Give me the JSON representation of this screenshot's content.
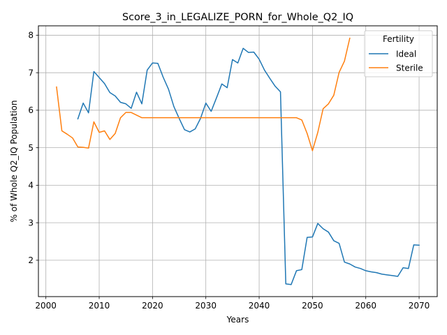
{
  "chart_data": {
    "type": "line",
    "title": "Score_3_in_LEGALIZE_PORN_for_Whole_Q2_IQ",
    "xlabel": "Years",
    "ylabel": "% of Whole Q2_IQ Population",
    "xlim": [
      1998.6,
      2073.4
    ],
    "ylim": [
      1.03,
      8.25
    ],
    "xticks": [
      2000,
      2010,
      2020,
      2030,
      2040,
      2050,
      2060,
      2070
    ],
    "yticks": [
      2,
      3,
      4,
      5,
      6,
      7,
      8
    ],
    "grid": true,
    "legend": {
      "title": "Fertility",
      "placement": "top-right"
    },
    "series": [
      {
        "name": "Ideal",
        "color": "#1f77b4",
        "x": [
          2006,
          2007,
          2008,
          2009,
          2010,
          2011,
          2012,
          2013,
          2014,
          2015,
          2016,
          2017,
          2018,
          2019,
          2020,
          2021,
          2022,
          2023,
          2024,
          2025,
          2026,
          2027,
          2028,
          2029,
          2030,
          2031,
          2032,
          2033,
          2034,
          2035,
          2036,
          2037,
          2038,
          2039,
          2040,
          2041,
          2042,
          2043,
          2044,
          2045,
          2046,
          2047,
          2048,
          2049,
          2050,
          2051,
          2052,
          2053,
          2054,
          2055,
          2056,
          2057,
          2058,
          2059,
          2060,
          2061,
          2062,
          2063,
          2064,
          2065,
          2066,
          2067,
          2068,
          2069,
          2070
        ],
        "y": [
          5.77,
          6.19,
          5.93,
          7.03,
          6.87,
          6.71,
          6.47,
          6.38,
          6.21,
          6.17,
          6.05,
          6.48,
          6.17,
          7.07,
          7.26,
          7.25,
          6.88,
          6.56,
          6.1,
          5.78,
          5.48,
          5.42,
          5.5,
          5.78,
          6.19,
          5.97,
          6.33,
          6.7,
          6.6,
          7.35,
          7.26,
          7.65,
          7.54,
          7.55,
          7.36,
          7.07,
          6.85,
          6.64,
          6.49,
          1.37,
          1.35,
          1.72,
          1.75,
          2.61,
          2.62,
          2.98,
          2.84,
          2.75,
          2.52,
          2.45,
          1.95,
          1.9,
          1.82,
          1.78,
          1.72,
          1.69,
          1.67,
          1.63,
          1.61,
          1.59,
          1.57,
          1.8,
          1.78,
          2.41,
          2.4
        ]
      },
      {
        "name": "Sterile",
        "color": "#ff7f0e",
        "x": [
          2002,
          2003,
          2004,
          2005,
          2006,
          2007,
          2008,
          2009,
          2010,
          2011,
          2012,
          2013,
          2014,
          2015,
          2016,
          2017,
          2018,
          2019,
          2020,
          2021,
          2022,
          2023,
          2024,
          2025,
          2026,
          2027,
          2028,
          2029,
          2030,
          2031,
          2032,
          2033,
          2034,
          2035,
          2036,
          2037,
          2038,
          2039,
          2040,
          2041,
          2042,
          2043,
          2044,
          2045,
          2046,
          2047,
          2048,
          2049,
          2050,
          2051,
          2052,
          2053,
          2054,
          2055,
          2056,
          2057
        ],
        "y": [
          6.62,
          5.45,
          5.36,
          5.26,
          5.02,
          5.01,
          4.99,
          5.69,
          5.41,
          5.45,
          5.22,
          5.38,
          5.8,
          5.94,
          5.94,
          5.87,
          5.8,
          5.8,
          5.8,
          5.8,
          5.8,
          5.8,
          5.8,
          5.8,
          5.8,
          5.8,
          5.8,
          5.8,
          5.8,
          5.8,
          5.8,
          5.8,
          5.8,
          5.8,
          5.8,
          5.8,
          5.8,
          5.8,
          5.8,
          5.8,
          5.8,
          5.8,
          5.8,
          5.8,
          5.8,
          5.8,
          5.74,
          5.38,
          4.92,
          5.41,
          6.04,
          6.17,
          6.4,
          7.01,
          7.31,
          7.92
        ]
      }
    ]
  }
}
